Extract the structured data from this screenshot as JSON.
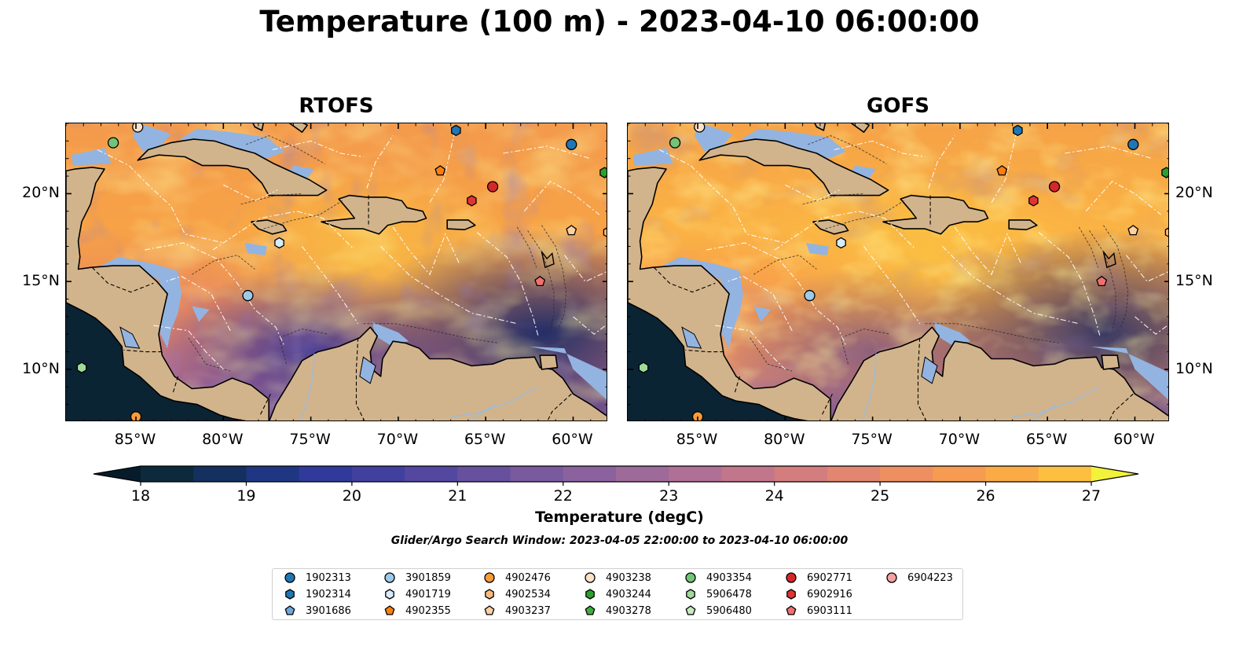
{
  "title": "Temperature (100 m) - 2023-04-10 06:00:00",
  "panels": [
    {
      "id": "rtofs",
      "title": "RTOFS"
    },
    {
      "id": "gofs",
      "title": "GOFS"
    }
  ],
  "map_extent": {
    "lon_min": -89,
    "lon_max": -58,
    "lat_min": 7,
    "lat_max": 24
  },
  "lon_ticks": [
    {
      "value": -85,
      "label": "85°W"
    },
    {
      "value": -80,
      "label": "80°W"
    },
    {
      "value": -75,
      "label": "75°W"
    },
    {
      "value": -70,
      "label": "70°W"
    },
    {
      "value": -65,
      "label": "65°W"
    },
    {
      "value": -60,
      "label": "60°W"
    }
  ],
  "lat_ticks": [
    {
      "value": 20,
      "label": "20°N"
    },
    {
      "value": 15,
      "label": "15°N"
    },
    {
      "value": 10,
      "label": "10°N"
    }
  ],
  "colorbar": {
    "label": "Temperature (degC)",
    "min": 18,
    "max": 27,
    "step": 0.5,
    "ticks": [
      "18",
      "19",
      "20",
      "21",
      "22",
      "23",
      "24",
      "25",
      "26",
      "27"
    ],
    "colors": [
      "#0c2a3c",
      "#13305e",
      "#1f3782",
      "#2f3a9a",
      "#41409e",
      "#54479f",
      "#67519f",
      "#795a9f",
      "#8b629e",
      "#9d6a9a",
      "#b06f94",
      "#c2768b",
      "#d37d7e",
      "#e28571",
      "#ee8f62",
      "#f79b52",
      "#fbab46",
      "#fdbf3f",
      "#fad73e"
    ],
    "under_color": "#061c2b",
    "over_color": "#f3f23a"
  },
  "search_window": "Glider/Argo Search Window: 2023-04-05 22:00:00 to 2023-04-10 06:00:00",
  "legend": [
    {
      "label": "1902313",
      "marker": "circle",
      "color": "#1f77b4"
    },
    {
      "label": "1902314",
      "marker": "hexagon",
      "color": "#1f77b4"
    },
    {
      "label": "3901686",
      "marker": "pentagon",
      "color": "#6fa8dc"
    },
    {
      "label": "3901859",
      "marker": "circle",
      "color": "#9ecae9"
    },
    {
      "label": "4901719",
      "marker": "hexagon",
      "color": "#d6ecfa"
    },
    {
      "label": "4902355",
      "marker": "pentagon",
      "color": "#ff7f0e"
    },
    {
      "label": "4902476",
      "marker": "circle",
      "color": "#f99a3b"
    },
    {
      "label": "4902534",
      "marker": "hexagon",
      "color": "#fdb97d"
    },
    {
      "label": "4903237",
      "marker": "pentagon",
      "color": "#fdd0a2"
    },
    {
      "label": "4903238",
      "marker": "circle",
      "color": "#fde2c8"
    },
    {
      "label": "4903244",
      "marker": "hexagon",
      "color": "#2ca02c"
    },
    {
      "label": "4903278",
      "marker": "pentagon",
      "color": "#3fae3f"
    },
    {
      "label": "4903354",
      "marker": "circle",
      "color": "#74c476"
    },
    {
      "label": "5906478",
      "marker": "hexagon",
      "color": "#a1d99b"
    },
    {
      "label": "5906480",
      "marker": "pentagon",
      "color": "#c7e9c0"
    },
    {
      "label": "6902771",
      "marker": "circle",
      "color": "#d62728"
    },
    {
      "label": "6902916",
      "marker": "hexagon",
      "color": "#e03434"
    },
    {
      "label": "6903111",
      "marker": "pentagon",
      "color": "#f07070"
    },
    {
      "label": "6904223",
      "marker": "circle",
      "color": "#f7a1a1"
    }
  ],
  "floats": [
    {
      "id": "3901859",
      "lon": -78.6,
      "lat": 14.2
    },
    {
      "id": "4901719",
      "lon": -76.8,
      "lat": 17.2
    },
    {
      "id": "6902771",
      "lon": -64.6,
      "lat": 20.4
    },
    {
      "id": "6902916",
      "lon": -65.8,
      "lat": 19.6
    },
    {
      "id": "4902355",
      "lon": -67.6,
      "lat": 21.3
    },
    {
      "id": "1902313",
      "lon": -60.1,
      "lat": 22.8
    },
    {
      "id": "4903244",
      "lon": -58.2,
      "lat": 21.2
    },
    {
      "id": "4903354",
      "lon": -86.3,
      "lat": 22.9
    },
    {
      "id": "1902314",
      "lon": -66.7,
      "lat": 23.6
    },
    {
      "id": "4903238",
      "lon": -84.9,
      "lat": 23.8
    },
    {
      "id": "4903237",
      "lon": -60.1,
      "lat": 17.9
    },
    {
      "id": "4902534",
      "lon": -58.0,
      "lat": 17.8
    },
    {
      "id": "6903111",
      "lon": -61.9,
      "lat": 15.0
    },
    {
      "id": "5906478",
      "lon": -88.1,
      "lat": 10.1
    },
    {
      "id": "4902476",
      "lon": -85.0,
      "lat": 7.3
    }
  ]
}
